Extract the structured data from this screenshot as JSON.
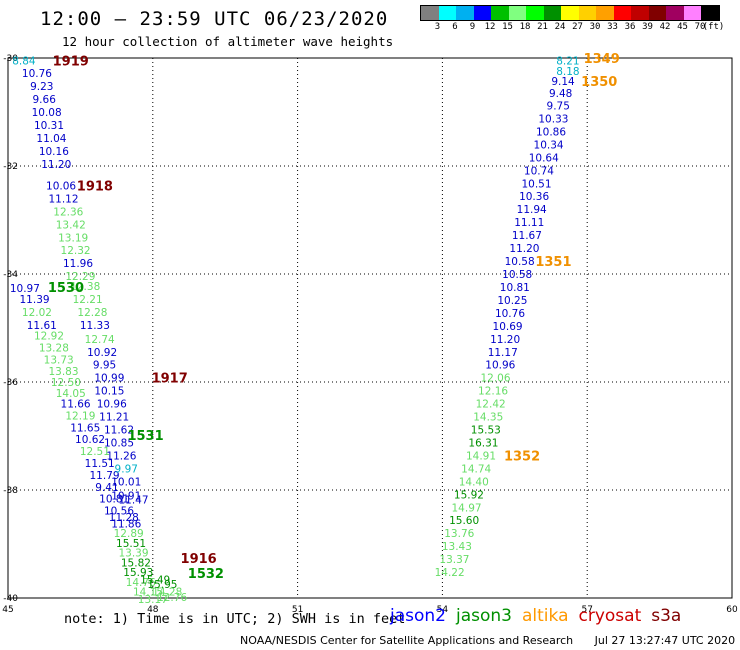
{
  "header": {
    "title": "12:00 – 23:59 UTC 06/23/2020",
    "subtitle": "12 hour collection of altimeter wave heights"
  },
  "color_scale": {
    "labels": [
      "3",
      "6",
      "9",
      "12",
      "15",
      "18",
      "21",
      "24",
      "27",
      "30",
      "33",
      "36",
      "39",
      "42",
      "45",
      "70",
      "(ft)"
    ],
    "colors": [
      "#808080",
      "#00ffff",
      "#00b0f0",
      "#0000ff",
      "#00c000",
      "#80ff80",
      "#00ff00",
      "#009000",
      "#ffff00",
      "#ffd000",
      "#ffa000",
      "#ff0000",
      "#c00000",
      "#800000",
      "#a00060",
      "#ff80ff",
      "#000000"
    ]
  },
  "footer": {
    "note": "note: 1) Time is in UTC; 2) SWH is in feet",
    "credit": "NOAA/NESDIS Center for Satellite Applications and Research",
    "timestamp": "Jul 27 13:27:47 UTC 2020"
  },
  "satellites": [
    {
      "name": "jason2",
      "color": "#0000ff"
    },
    {
      "name": "jason3",
      "color": "#009000"
    },
    {
      "name": "altika",
      "color": "#ff9900"
    },
    {
      "name": "cryosat",
      "color": "#cc0000"
    },
    {
      "name": "s3a",
      "color": "#800000"
    }
  ],
  "chart_data": {
    "type": "scatter",
    "title": "12:00 – 23:59 UTC 06/23/2020",
    "subtitle": "12 hour collection of altimeter wave heights",
    "xlim": [
      45,
      60
    ],
    "ylim": [
      -40,
      -30
    ],
    "x_ticks": [
      "45",
      "48",
      "51",
      "54",
      "57",
      "60"
    ],
    "y_ticks": [
      "-30",
      "-32",
      "-34",
      "-36",
      "-38",
      "-40"
    ],
    "grid": true,
    "units": "ft",
    "colors": {
      "cyan": "#00b0c8",
      "blue": "#0000c8",
      "lgreen": "#66dd66",
      "green": "#009000",
      "maroon": "#800000",
      "orange": "#f09000"
    },
    "points": [
      {
        "lon": 45.33,
        "lat": -30.05,
        "v": "8.84",
        "c": "cyan"
      },
      {
        "lon": 45.6,
        "lat": -30.28,
        "v": "10.76",
        "c": "blue"
      },
      {
        "lon": 45.7,
        "lat": -30.52,
        "v": "9.23",
        "c": "blue"
      },
      {
        "lon": 45.75,
        "lat": -30.76,
        "v": "9.66",
        "c": "blue"
      },
      {
        "lon": 45.8,
        "lat": -31.0,
        "v": "10.08",
        "c": "blue"
      },
      {
        "lon": 45.85,
        "lat": -31.24,
        "v": "10.31",
        "c": "blue"
      },
      {
        "lon": 45.9,
        "lat": -31.48,
        "v": "11.04",
        "c": "blue"
      },
      {
        "lon": 45.95,
        "lat": -31.72,
        "v": "10.16",
        "c": "blue"
      },
      {
        "lon": 46.0,
        "lat": -31.96,
        "v": "11.20",
        "c": "blue"
      },
      {
        "lon": 46.1,
        "lat": -32.36,
        "v": "10.06",
        "c": "blue"
      },
      {
        "lon": 46.15,
        "lat": -32.6,
        "v": "11.12",
        "c": "blue"
      },
      {
        "lon": 46.25,
        "lat": -32.84,
        "v": "12.36",
        "c": "lgreen"
      },
      {
        "lon": 46.3,
        "lat": -33.08,
        "v": "13.42",
        "c": "lgreen"
      },
      {
        "lon": 46.35,
        "lat": -33.32,
        "v": "13.19",
        "c": "lgreen"
      },
      {
        "lon": 46.4,
        "lat": -33.56,
        "v": "12.32",
        "c": "lgreen"
      },
      {
        "lon": 46.45,
        "lat": -33.8,
        "v": "11.96",
        "c": "blue"
      },
      {
        "lon": 46.5,
        "lat": -34.04,
        "v": "12.29",
        "c": "lgreen"
      },
      {
        "lon": 46.6,
        "lat": -34.22,
        "v": "12.38",
        "c": "lgreen"
      },
      {
        "lon": 45.35,
        "lat": -34.26,
        "v": "10.97",
        "c": "blue"
      },
      {
        "lon": 45.55,
        "lat": -34.46,
        "v": "11.39",
        "c": "blue"
      },
      {
        "lon": 46.65,
        "lat": -34.46,
        "v": "12.21",
        "c": "lgreen"
      },
      {
        "lon": 45.6,
        "lat": -34.7,
        "v": "12.02",
        "c": "lgreen"
      },
      {
        "lon": 46.75,
        "lat": -34.7,
        "v": "12.28",
        "c": "lgreen"
      },
      {
        "lon": 45.7,
        "lat": -34.94,
        "v": "11.61",
        "c": "blue"
      },
      {
        "lon": 45.85,
        "lat": -35.14,
        "v": "12.92",
        "c": "lgreen"
      },
      {
        "lon": 46.8,
        "lat": -34.94,
        "v": "11.33",
        "c": "blue"
      },
      {
        "lon": 45.95,
        "lat": -35.36,
        "v": "13.28",
        "c": "lgreen"
      },
      {
        "lon": 46.9,
        "lat": -35.2,
        "v": "12.74",
        "c": "lgreen"
      },
      {
        "lon": 46.05,
        "lat": -35.58,
        "v": "13.73",
        "c": "lgreen"
      },
      {
        "lon": 46.95,
        "lat": -35.44,
        "v": "10.92",
        "c": "blue"
      },
      {
        "lon": 46.15,
        "lat": -35.8,
        "v": "13.83",
        "c": "lgreen"
      },
      {
        "lon": 47.0,
        "lat": -35.68,
        "v": "9.95",
        "c": "blue"
      },
      {
        "lon": 46.2,
        "lat": -36.0,
        "v": "12.50",
        "c": "lgreen"
      },
      {
        "lon": 47.1,
        "lat": -35.92,
        "v": "10.99",
        "c": "blue"
      },
      {
        "lon": 46.3,
        "lat": -36.2,
        "v": "14.05",
        "c": "lgreen"
      },
      {
        "lon": 47.1,
        "lat": -36.16,
        "v": "10.15",
        "c": "blue"
      },
      {
        "lon": 46.4,
        "lat": -36.4,
        "v": "11.66",
        "c": "blue"
      },
      {
        "lon": 47.15,
        "lat": -36.4,
        "v": "10.96",
        "c": "blue"
      },
      {
        "lon": 46.5,
        "lat": -36.62,
        "v": "12.19",
        "c": "lgreen"
      },
      {
        "lon": 47.2,
        "lat": -36.64,
        "v": "11.21",
        "c": "blue"
      },
      {
        "lon": 46.6,
        "lat": -36.84,
        "v": "11.65",
        "c": "blue"
      },
      {
        "lon": 47.3,
        "lat": -36.88,
        "v": "11.62",
        "c": "blue"
      },
      {
        "lon": 46.7,
        "lat": -37.06,
        "v": "10.62",
        "c": "blue"
      },
      {
        "lon": 46.8,
        "lat": -37.28,
        "v": "12.51",
        "c": "lgreen"
      },
      {
        "lon": 47.3,
        "lat": -37.12,
        "v": "10.85",
        "c": "blue"
      },
      {
        "lon": 46.9,
        "lat": -37.5,
        "v": "11.51",
        "c": "blue"
      },
      {
        "lon": 47.35,
        "lat": -37.36,
        "v": "11.26",
        "c": "blue"
      },
      {
        "lon": 47.0,
        "lat": -37.72,
        "v": "11.79",
        "c": "blue"
      },
      {
        "lon": 47.45,
        "lat": -37.6,
        "v": "9.97",
        "c": "cyan"
      },
      {
        "lon": 47.05,
        "lat": -37.94,
        "v": "9.41",
        "c": "blue"
      },
      {
        "lon": 47.45,
        "lat": -37.84,
        "v": "10.01",
        "c": "blue"
      },
      {
        "lon": 47.2,
        "lat": -38.16,
        "v": "10.81",
        "c": "blue"
      },
      {
        "lon": 47.45,
        "lat": -38.1,
        "v": "10.91",
        "c": "blue"
      },
      {
        "lon": 47.3,
        "lat": -38.38,
        "v": "10.56",
        "c": "blue"
      },
      {
        "lon": 47.6,
        "lat": -38.18,
        "v": "11.47",
        "c": "blue"
      },
      {
        "lon": 47.4,
        "lat": -38.5,
        "v": "11.28",
        "c": "blue"
      },
      {
        "lon": 47.45,
        "lat": -38.62,
        "v": "11.86",
        "c": "blue"
      },
      {
        "lon": 47.5,
        "lat": -38.8,
        "v": "12.89",
        "c": "lgreen"
      },
      {
        "lon": 47.55,
        "lat": -38.98,
        "v": "15.51",
        "c": "green"
      },
      {
        "lon": 47.6,
        "lat": -39.16,
        "v": "13.39",
        "c": "lgreen"
      },
      {
        "lon": 47.65,
        "lat": -39.34,
        "v": "15.82",
        "c": "green"
      },
      {
        "lon": 47.7,
        "lat": -39.52,
        "v": "15.93",
        "c": "green"
      },
      {
        "lon": 47.75,
        "lat": -39.7,
        "v": "14.76",
        "c": "lgreen"
      },
      {
        "lon": 47.9,
        "lat": -39.88,
        "v": "14.15",
        "c": "lgreen"
      },
      {
        "lon": 48.0,
        "lat": -40.02,
        "v": "13.17",
        "c": "lgreen"
      },
      {
        "lon": 48.05,
        "lat": -39.66,
        "v": "15.49",
        "c": "green"
      },
      {
        "lon": 48.2,
        "lat": -39.74,
        "v": "15.95",
        "c": "green"
      },
      {
        "lon": 48.3,
        "lat": -39.88,
        "v": "14.28",
        "c": "lgreen"
      },
      {
        "lon": 48.4,
        "lat": -39.98,
        "v": "12.76",
        "c": "lgreen"
      },
      {
        "lon": 56.6,
        "lat": -30.05,
        "v": "8.21",
        "c": "cyan"
      },
      {
        "lon": 56.6,
        "lat": -30.24,
        "v": "8.18",
        "c": "cyan"
      },
      {
        "lon": 56.5,
        "lat": -30.43,
        "v": "9.14",
        "c": "blue"
      },
      {
        "lon": 56.45,
        "lat": -30.65,
        "v": "9.48",
        "c": "blue"
      },
      {
        "lon": 56.4,
        "lat": -30.88,
        "v": "9.75",
        "c": "blue"
      },
      {
        "lon": 56.3,
        "lat": -31.12,
        "v": "10.33",
        "c": "blue"
      },
      {
        "lon": 56.25,
        "lat": -31.36,
        "v": "10.86",
        "c": "blue"
      },
      {
        "lon": 56.2,
        "lat": -31.6,
        "v": "10.34",
        "c": "blue"
      },
      {
        "lon": 56.1,
        "lat": -31.84,
        "v": "10.64",
        "c": "blue"
      },
      {
        "lon": 56.0,
        "lat": -32.08,
        "v": "10.74",
        "c": "blue"
      },
      {
        "lon": 55.95,
        "lat": -32.32,
        "v": "10.51",
        "c": "blue"
      },
      {
        "lon": 55.9,
        "lat": -32.56,
        "v": "10.36",
        "c": "blue"
      },
      {
        "lon": 55.85,
        "lat": -32.8,
        "v": "11.94",
        "c": "blue"
      },
      {
        "lon": 55.8,
        "lat": -33.04,
        "v": "11.11",
        "c": "blue"
      },
      {
        "lon": 55.75,
        "lat": -33.28,
        "v": "11.67",
        "c": "blue"
      },
      {
        "lon": 55.7,
        "lat": -33.52,
        "v": "11.20",
        "c": "blue"
      },
      {
        "lon": 55.6,
        "lat": -33.76,
        "v": "10.58",
        "c": "blue"
      },
      {
        "lon": 55.55,
        "lat": -34.0,
        "v": "10.58",
        "c": "blue"
      },
      {
        "lon": 55.5,
        "lat": -34.24,
        "v": "10.81",
        "c": "blue"
      },
      {
        "lon": 55.45,
        "lat": -34.48,
        "v": "10.25",
        "c": "blue"
      },
      {
        "lon": 55.4,
        "lat": -34.72,
        "v": "10.76",
        "c": "blue"
      },
      {
        "lon": 55.35,
        "lat": -34.96,
        "v": "10.69",
        "c": "blue"
      },
      {
        "lon": 55.3,
        "lat": -35.2,
        "v": "11.20",
        "c": "blue"
      },
      {
        "lon": 55.25,
        "lat": -35.44,
        "v": "11.17",
        "c": "blue"
      },
      {
        "lon": 55.2,
        "lat": -35.68,
        "v": "10.96",
        "c": "blue"
      },
      {
        "lon": 55.1,
        "lat": -35.92,
        "v": "12.06",
        "c": "lgreen"
      },
      {
        "lon": 55.05,
        "lat": -36.16,
        "v": "12.16",
        "c": "lgreen"
      },
      {
        "lon": 55.0,
        "lat": -36.4,
        "v": "12.42",
        "c": "lgreen"
      },
      {
        "lon": 54.95,
        "lat": -36.64,
        "v": "14.35",
        "c": "lgreen"
      },
      {
        "lon": 54.9,
        "lat": -36.88,
        "v": "15.53",
        "c": "green"
      },
      {
        "lon": 54.85,
        "lat": -37.12,
        "v": "16.31",
        "c": "green"
      },
      {
        "lon": 54.8,
        "lat": -37.36,
        "v": "14.91",
        "c": "lgreen"
      },
      {
        "lon": 54.7,
        "lat": -37.6,
        "v": "14.74",
        "c": "lgreen"
      },
      {
        "lon": 54.65,
        "lat": -37.84,
        "v": "14.40",
        "c": "lgreen"
      },
      {
        "lon": 54.55,
        "lat": -38.08,
        "v": "15.92",
        "c": "green"
      },
      {
        "lon": 54.5,
        "lat": -38.32,
        "v": "14.97",
        "c": "lgreen"
      },
      {
        "lon": 54.45,
        "lat": -38.56,
        "v": "15.60",
        "c": "green"
      },
      {
        "lon": 54.35,
        "lat": -38.8,
        "v": "13.76",
        "c": "lgreen"
      },
      {
        "lon": 54.3,
        "lat": -39.04,
        "v": "13.43",
        "c": "lgreen"
      },
      {
        "lon": 54.25,
        "lat": -39.28,
        "v": "13.37",
        "c": "lgreen"
      },
      {
        "lon": 54.15,
        "lat": -39.52,
        "v": "14.22",
        "c": "lgreen"
      }
    ],
    "pass_labels": [
      {
        "lon": 46.3,
        "lat": -30.05,
        "text": "1919",
        "c": "maroon"
      },
      {
        "lon": 46.8,
        "lat": -32.36,
        "text": "1918",
        "c": "maroon"
      },
      {
        "lon": 46.2,
        "lat": -34.24,
        "text": "1530",
        "c": "green"
      },
      {
        "lon": 48.35,
        "lat": -35.92,
        "text": "1917",
        "c": "maroon"
      },
      {
        "lon": 47.85,
        "lat": -36.98,
        "text": "1531",
        "c": "green"
      },
      {
        "lon": 48.95,
        "lat": -39.26,
        "text": "1916",
        "c": "maroon"
      },
      {
        "lon": 49.1,
        "lat": -39.54,
        "text": "1532",
        "c": "green"
      },
      {
        "lon": 57.3,
        "lat": -30.0,
        "text": "1349",
        "c": "orange"
      },
      {
        "lon": 57.25,
        "lat": -30.43,
        "text": "1350",
        "c": "orange"
      },
      {
        "lon": 56.3,
        "lat": -33.76,
        "text": "1351",
        "c": "orange"
      },
      {
        "lon": 55.65,
        "lat": -37.36,
        "text": "1352",
        "c": "orange"
      }
    ]
  }
}
